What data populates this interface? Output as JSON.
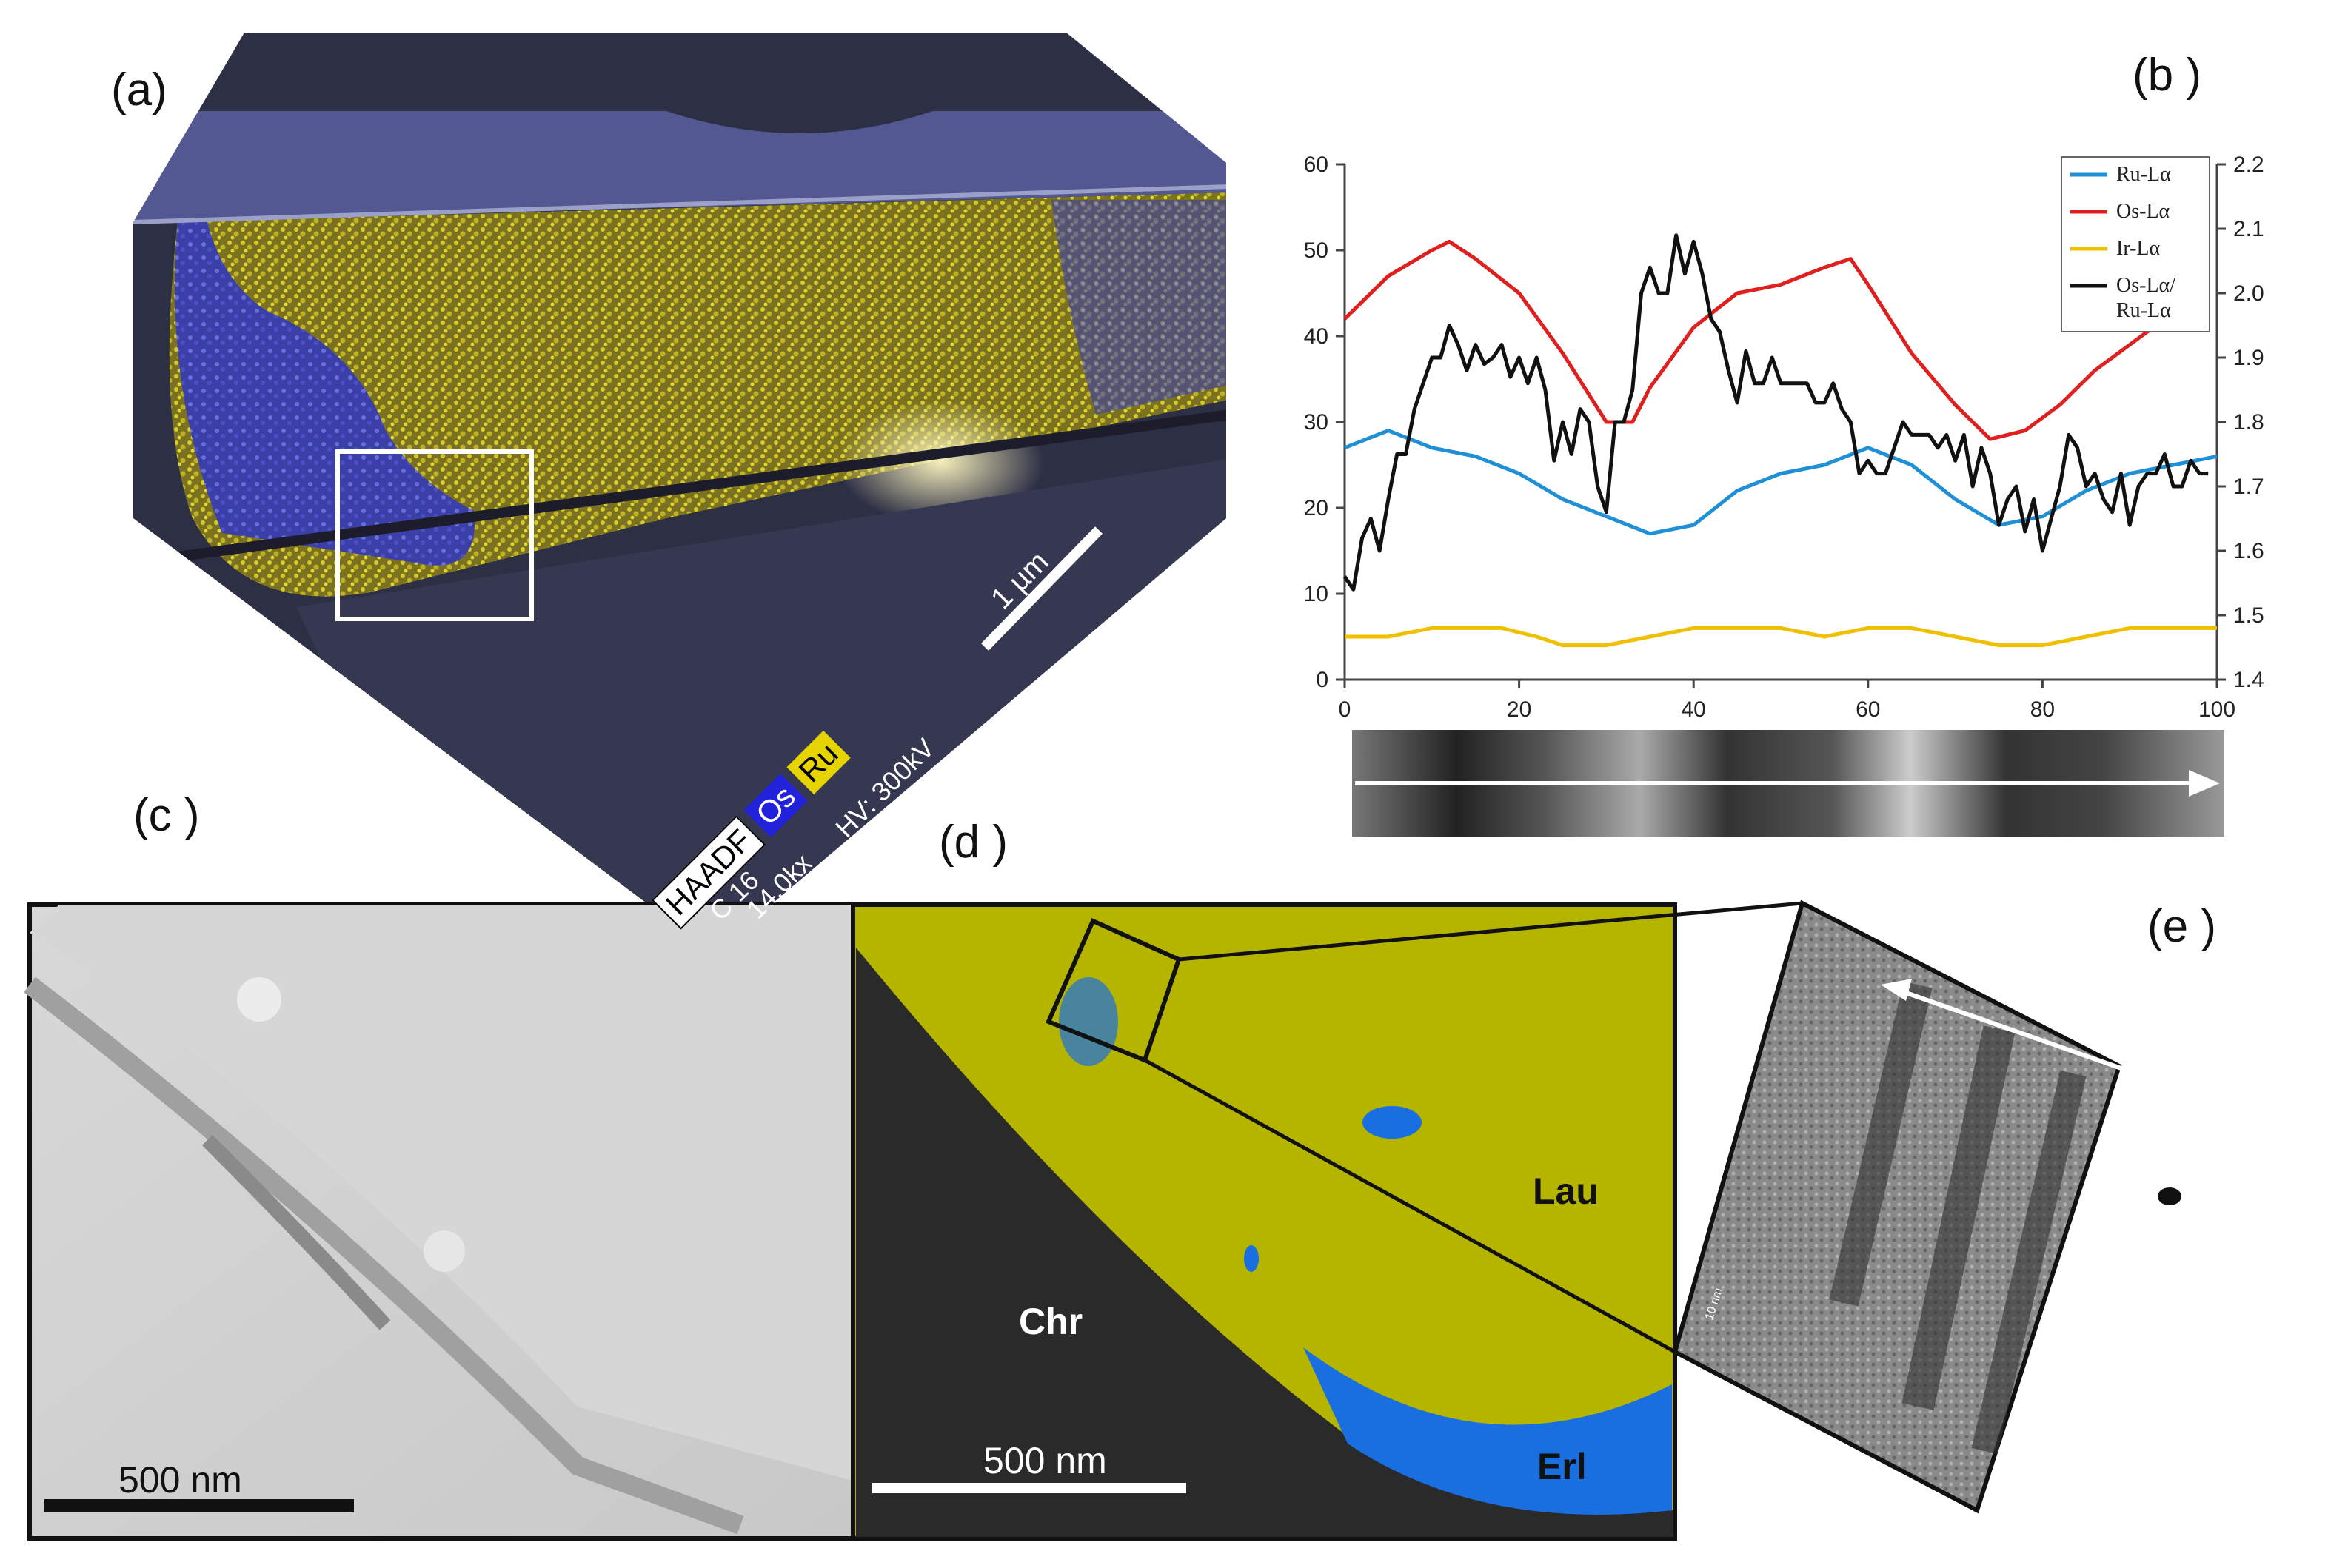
{
  "panels": {
    "a": {
      "label": "(a)",
      "scale_bar": "1 µm",
      "legend": [
        "HAADF",
        "Os",
        "Ru"
      ],
      "info": "HV: 300kV",
      "info2": "14.0kx",
      "info3": "C 16",
      "colors": {
        "Os": "#2222dd",
        "Ru": "#e6d400",
        "HAADF": "#ffffff"
      }
    },
    "b": {
      "label": "(b )"
    },
    "c": {
      "label": "(c )",
      "scale_bar": "500 nm"
    },
    "d": {
      "label": "(d )",
      "scale_bar": "500 nm",
      "regions": [
        "Lau",
        "Chr",
        "Erl"
      ],
      "colors": {
        "Lau": "#b5b500",
        "Erl": "#1a6fe0",
        "Chr": "#2a2a2a"
      }
    },
    "e": {
      "label": "(e )",
      "scale_bar": "10 nm"
    }
  },
  "chart_data": {
    "type": "line",
    "x_ticks": [
      0,
      20,
      40,
      60,
      80,
      100
    ],
    "xlim": [
      0,
      100
    ],
    "ylim": [
      0,
      60
    ],
    "y_ticks": [
      0,
      10,
      20,
      30,
      40,
      50,
      60
    ],
    "y2lim": [
      1.4,
      2.2
    ],
    "y2_ticks": [
      "1.4",
      "1.5",
      "1.6",
      "1.7",
      "1.8",
      "1.9",
      "2.0",
      "2.1",
      "2.2"
    ],
    "legend_position": "top-right",
    "series": [
      {
        "name": "Ru-Lα",
        "color": "#1f8fd6",
        "axis": "left",
        "x": [
          0,
          5,
          10,
          15,
          20,
          25,
          30,
          35,
          40,
          45,
          50,
          55,
          60,
          65,
          70,
          75,
          80,
          85,
          90,
          95,
          100
        ],
        "y": [
          27,
          29,
          27,
          26,
          24,
          21,
          19,
          17,
          18,
          22,
          24,
          25,
          27,
          25,
          21,
          18,
          19,
          22,
          24,
          25,
          26
        ]
      },
      {
        "name": "Os-Lα",
        "color": "#e01f1f",
        "axis": "left",
        "x": [
          0,
          5,
          10,
          12,
          15,
          20,
          25,
          30,
          33,
          35,
          40,
          45,
          50,
          55,
          58,
          60,
          65,
          70,
          74,
          78,
          82,
          86,
          90,
          94
        ],
        "y": [
          42,
          47,
          50,
          51,
          49,
          45,
          38,
          30,
          30,
          34,
          41,
          45,
          46,
          48,
          49,
          46,
          38,
          32,
          28,
          29,
          32,
          36,
          39,
          42
        ]
      },
      {
        "name": "Ir-Lα",
        "color": "#f0c000",
        "axis": "left",
        "x": [
          0,
          5,
          10,
          18,
          22,
          25,
          30,
          35,
          40,
          45,
          50,
          55,
          60,
          65,
          70,
          75,
          80,
          85,
          90,
          95,
          100
        ],
        "y": [
          5,
          5,
          6,
          6,
          5,
          4,
          4,
          5,
          6,
          6,
          6,
          5,
          6,
          6,
          5,
          4,
          4,
          5,
          6,
          6,
          6
        ]
      },
      {
        "name": "Os-Lα/\nRu-Lα",
        "color": "#111111",
        "axis": "right",
        "x": [
          0,
          1,
          2,
          3,
          4,
          5,
          6,
          7,
          8,
          9,
          10,
          11,
          12,
          13,
          14,
          15,
          16,
          17,
          18,
          19,
          20,
          21,
          22,
          23,
          24,
          25,
          26,
          27,
          28,
          29,
          30,
          31,
          32,
          33,
          34,
          35,
          36,
          37,
          38,
          39,
          40,
          41,
          42,
          43,
          44,
          45,
          46,
          47,
          48,
          49,
          50,
          51,
          52,
          53,
          54,
          55,
          56,
          57,
          58,
          59,
          60,
          61,
          62,
          63,
          64,
          65,
          66,
          67,
          68,
          69,
          70,
          71,
          72,
          73,
          74,
          75,
          76,
          77,
          78,
          79,
          80,
          81,
          82,
          83,
          84,
          85,
          86,
          87,
          88,
          89,
          90,
          91,
          92,
          93,
          94,
          95,
          96,
          97,
          98,
          99
        ],
        "y": [
          1.56,
          1.54,
          1.62,
          1.65,
          1.6,
          1.68,
          1.75,
          1.75,
          1.82,
          1.86,
          1.9,
          1.9,
          1.95,
          1.92,
          1.88,
          1.92,
          1.89,
          1.9,
          1.92,
          1.87,
          1.9,
          1.86,
          1.9,
          1.85,
          1.74,
          1.8,
          1.75,
          1.82,
          1.8,
          1.7,
          1.66,
          1.8,
          1.8,
          1.85,
          2.0,
          2.04,
          2.0,
          2.0,
          2.09,
          2.03,
          2.08,
          2.03,
          1.96,
          1.94,
          1.88,
          1.83,
          1.91,
          1.86,
          1.86,
          1.9,
          1.86,
          1.86,
          1.86,
          1.86,
          1.83,
          1.83,
          1.86,
          1.82,
          1.8,
          1.72,
          1.74,
          1.72,
          1.72,
          1.76,
          1.8,
          1.78,
          1.78,
          1.78,
          1.76,
          1.78,
          1.74,
          1.78,
          1.7,
          1.76,
          1.72,
          1.64,
          1.68,
          1.7,
          1.63,
          1.68,
          1.6,
          1.65,
          1.7,
          1.78,
          1.76,
          1.7,
          1.72,
          1.68,
          1.66,
          1.72,
          1.64,
          1.7,
          1.72,
          1.72,
          1.75,
          1.7,
          1.7,
          1.74,
          1.72,
          1.72
        ]
      }
    ]
  }
}
